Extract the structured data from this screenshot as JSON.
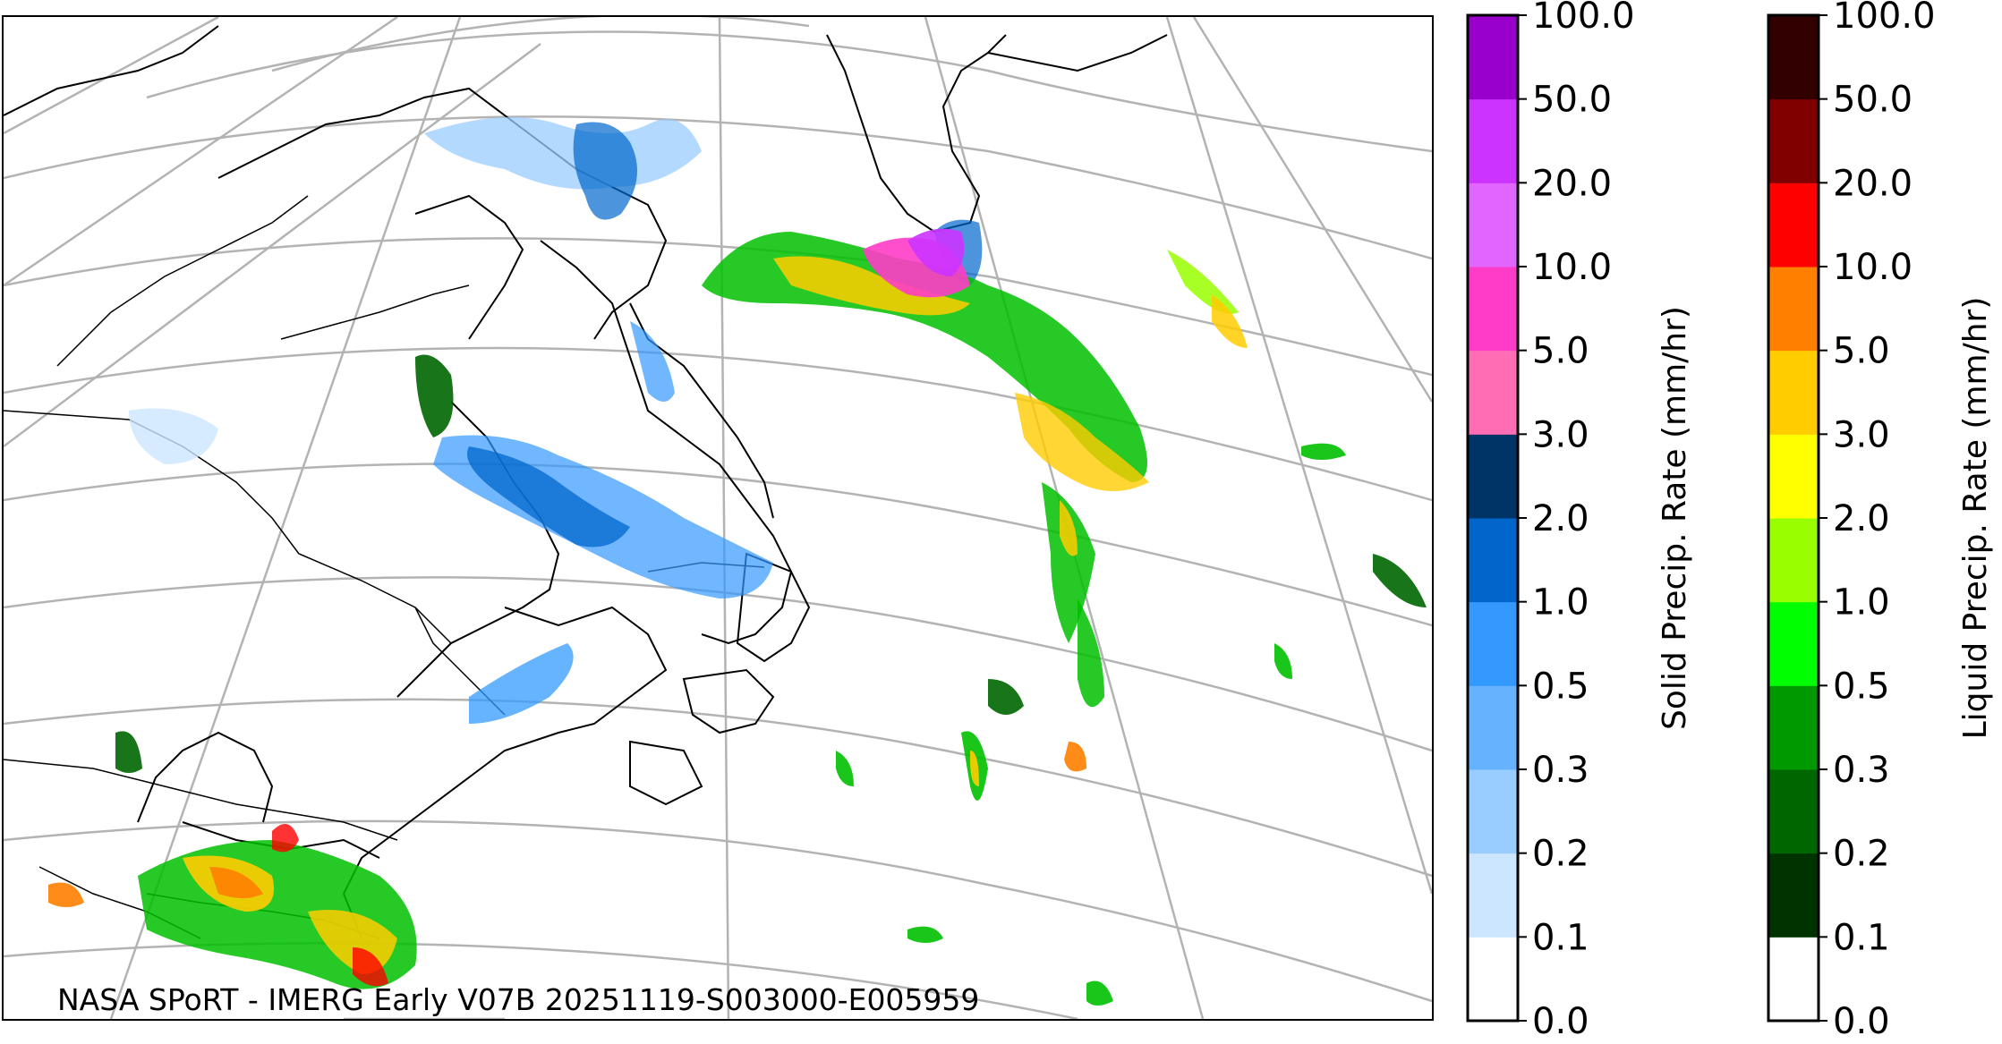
{
  "credit": "NASA SPoRT - IMERG Early V07B 20251119-S003000-E005959",
  "map": {
    "region": "Northeastern North America and northwest Atlantic",
    "colors": {
      "coast": "#000000",
      "border": "#000000",
      "graticule": "#b3b3b3",
      "background": "#ffffff"
    }
  },
  "solid_colorbar": {
    "label": "Solid Precip. Rate (mm/hr)",
    "ticks": [
      "0.0",
      "0.1",
      "0.2",
      "0.3",
      "0.5",
      "1.0",
      "2.0",
      "3.0",
      "5.0",
      "10.0",
      "20.0",
      "50.0",
      "100.0"
    ],
    "colors": [
      "#ffffff",
      "#cce6ff",
      "#99ccff",
      "#66b2ff",
      "#3399ff",
      "#0066cc",
      "#003366",
      "#ff6eb4",
      "#ff3cc8",
      "#e066ff",
      "#cc33ff",
      "#9900cc"
    ]
  },
  "liquid_colorbar": {
    "label": "Liquid Precip. Rate (mm/hr)",
    "ticks": [
      "0.0",
      "0.1",
      "0.2",
      "0.3",
      "0.5",
      "1.0",
      "2.0",
      "3.0",
      "5.0",
      "10.0",
      "20.0",
      "50.0",
      "100.0"
    ],
    "colors": [
      "#ffffff",
      "#003300",
      "#006600",
      "#009900",
      "#00ff00",
      "#99ff00",
      "#ffff00",
      "#ffcc00",
      "#ff8000",
      "#ff0000",
      "#800000",
      "#330000"
    ]
  }
}
